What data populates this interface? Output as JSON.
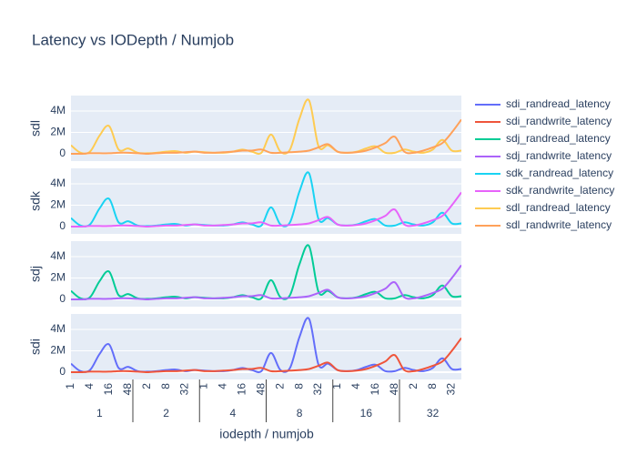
{
  "chart_data": {
    "type": "line",
    "title": "Latency vs IODepth / Numjob",
    "x_label": "iodepth / numjob",
    "groups": [
      1,
      2,
      4,
      8,
      16,
      32
    ],
    "categories": [
      1,
      null,
      4,
      null,
      16,
      null,
      48,
      null,
      2,
      null,
      8,
      null,
      32,
      null,
      1,
      null,
      4,
      null,
      16,
      null,
      48,
      null,
      2,
      null,
      8,
      null,
      32,
      null,
      1,
      null,
      4,
      null,
      16,
      null,
      48,
      null,
      2,
      null,
      8,
      null,
      32,
      null
    ],
    "ylim": [
      -680000,
      5450000
    ],
    "yticks": [
      0,
      {
        "value": 2000000,
        "label": "2M"
      },
      {
        "value": 4000000,
        "label": "4M"
      }
    ],
    "grid": true,
    "smooth": true,
    "panels": [
      {
        "ylabel": "sdi",
        "series": [
          {
            "name": "sdi_randread_latency",
            "color": "#636efa",
            "values": [
              800000,
              100000,
              200000,
              1700000,
              2600000,
              400000,
              500000,
              100000,
              50000,
              100000,
              200000,
              250000,
              100000,
              200000,
              150000,
              100000,
              100000,
              200000,
              400000,
              200000,
              100000,
              1800000,
              200000,
              400000,
              3300000,
              5000000,
              700000,
              800000,
              200000,
              100000,
              200000,
              500000,
              700000,
              100000,
              100000,
              400000,
              200000,
              100000,
              400000,
              1300000,
              300000,
              300000
            ]
          },
          {
            "name": "sdi_randwrite_latency",
            "color": "#ef553b",
            "values": [
              0,
              0,
              50000,
              50000,
              50000,
              100000,
              100000,
              50000,
              0,
              50000,
              100000,
              100000,
              150000,
              200000,
              100000,
              100000,
              150000,
              200000,
              300000,
              300000,
              400000,
              100000,
              100000,
              150000,
              200000,
              300000,
              600000,
              900000,
              200000,
              100000,
              150000,
              300000,
              600000,
              1000000,
              1600000,
              200000,
              100000,
              300000,
              600000,
              1000000,
              2000000,
              3200000
            ]
          }
        ]
      },
      {
        "ylabel": "sdj",
        "series": [
          {
            "name": "sdj_randread_latency",
            "color": "#00cc96",
            "values": [
              800000,
              100000,
              200000,
              1700000,
              2600000,
              400000,
              500000,
              100000,
              50000,
              100000,
              200000,
              250000,
              100000,
              200000,
              150000,
              100000,
              100000,
              200000,
              400000,
              200000,
              100000,
              1800000,
              200000,
              400000,
              3300000,
              5000000,
              700000,
              800000,
              200000,
              100000,
              200000,
              500000,
              700000,
              100000,
              100000,
              400000,
              200000,
              100000,
              400000,
              1300000,
              300000,
              300000
            ]
          },
          {
            "name": "sdj_randwrite_latency",
            "color": "#ab63fa",
            "values": [
              0,
              0,
              50000,
              50000,
              50000,
              100000,
              100000,
              50000,
              0,
              50000,
              100000,
              100000,
              150000,
              200000,
              100000,
              100000,
              150000,
              200000,
              300000,
              300000,
              400000,
              100000,
              100000,
              150000,
              200000,
              300000,
              600000,
              900000,
              200000,
              100000,
              150000,
              300000,
              600000,
              1000000,
              1600000,
              200000,
              100000,
              300000,
              600000,
              1000000,
              2000000,
              3200000
            ]
          }
        ]
      },
      {
        "ylabel": "sdk",
        "series": [
          {
            "name": "sdk_randread_latency",
            "color": "#19d3f3",
            "values": [
              800000,
              100000,
              200000,
              1700000,
              2600000,
              400000,
              500000,
              100000,
              50000,
              100000,
              200000,
              250000,
              100000,
              200000,
              150000,
              100000,
              100000,
              200000,
              400000,
              200000,
              100000,
              1800000,
              200000,
              400000,
              3300000,
              5000000,
              700000,
              800000,
              200000,
              100000,
              200000,
              500000,
              700000,
              100000,
              100000,
              400000,
              200000,
              100000,
              400000,
              1300000,
              300000,
              300000
            ]
          },
          {
            "name": "sdk_randwrite_latency",
            "color": "#e763fa",
            "values": [
              0,
              0,
              50000,
              50000,
              50000,
              100000,
              100000,
              50000,
              0,
              50000,
              100000,
              100000,
              150000,
              200000,
              100000,
              100000,
              150000,
              200000,
              300000,
              300000,
              400000,
              100000,
              100000,
              150000,
              200000,
              300000,
              600000,
              900000,
              200000,
              100000,
              150000,
              300000,
              600000,
              1000000,
              1600000,
              200000,
              100000,
              300000,
              600000,
              1000000,
              2000000,
              3200000
            ]
          }
        ]
      },
      {
        "ylabel": "sdl",
        "series": [
          {
            "name": "sdl_randread_latency",
            "color": "#fecb52",
            "values": [
              800000,
              100000,
              200000,
              1700000,
              2600000,
              400000,
              500000,
              100000,
              50000,
              100000,
              200000,
              250000,
              100000,
              200000,
              150000,
              100000,
              100000,
              200000,
              400000,
              200000,
              100000,
              1800000,
              200000,
              400000,
              3300000,
              5000000,
              700000,
              800000,
              200000,
              100000,
              200000,
              500000,
              700000,
              100000,
              100000,
              400000,
              200000,
              100000,
              400000,
              1300000,
              300000,
              300000
            ]
          },
          {
            "name": "sdl_randwrite_latency",
            "color": "#ffa15a",
            "values": [
              0,
              0,
              50000,
              50000,
              50000,
              100000,
              100000,
              50000,
              0,
              50000,
              100000,
              100000,
              150000,
              200000,
              100000,
              100000,
              150000,
              200000,
              300000,
              300000,
              400000,
              100000,
              100000,
              150000,
              200000,
              300000,
              600000,
              900000,
              200000,
              100000,
              150000,
              300000,
              600000,
              1000000,
              1600000,
              200000,
              100000,
              300000,
              600000,
              1000000,
              2000000,
              3200000
            ]
          }
        ]
      }
    ]
  }
}
